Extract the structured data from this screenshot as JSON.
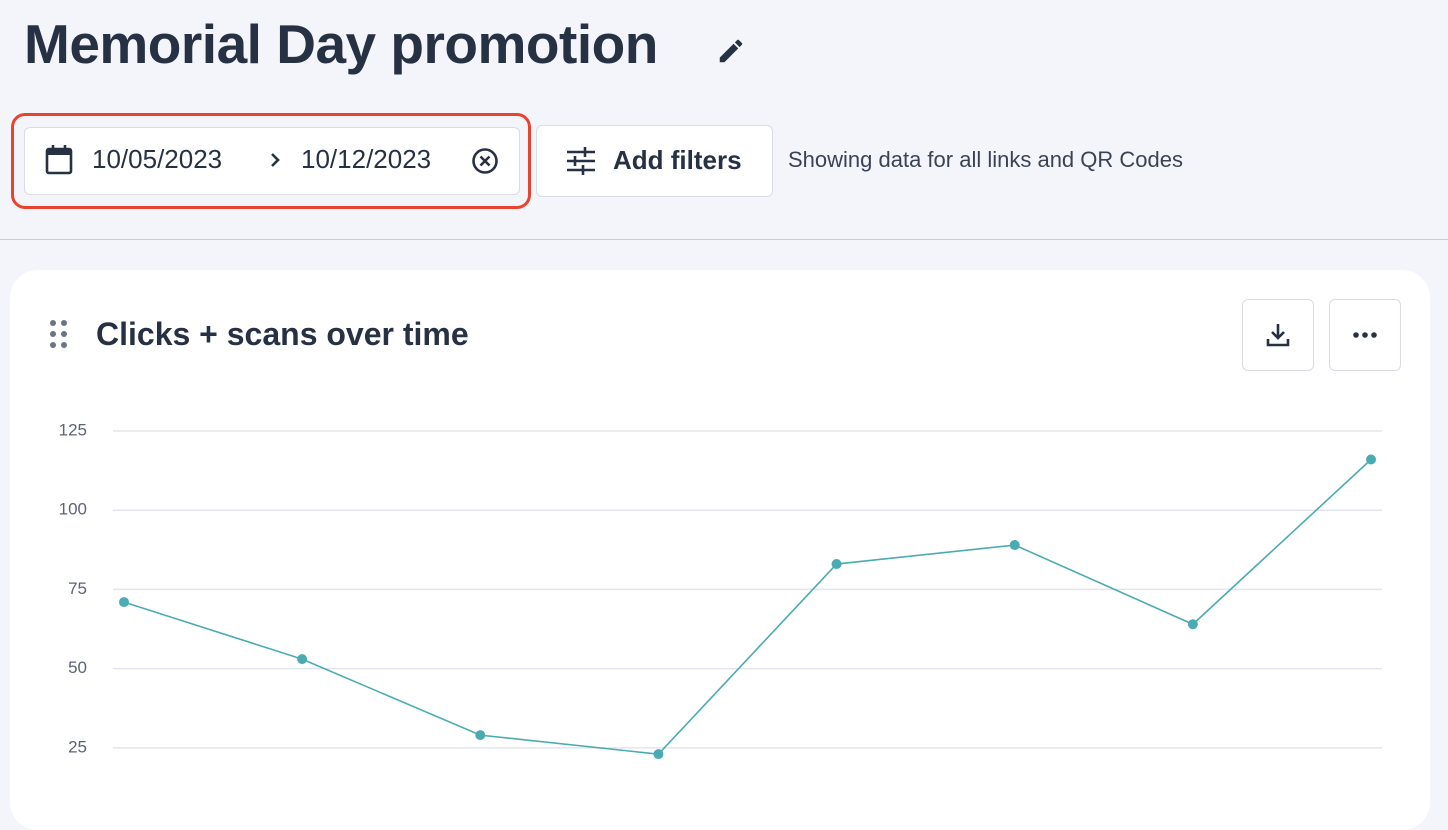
{
  "header": {
    "title": "Memorial Day promotion"
  },
  "date_range": {
    "start": "10/05/2023",
    "end": "10/12/2023"
  },
  "filters": {
    "button": "Add filters",
    "description": "Showing data for all links and QR Codes"
  },
  "card": {
    "title": "Clicks + scans over time"
  },
  "chart_data": {
    "type": "line",
    "categories": [
      null,
      null,
      null,
      null,
      null,
      null,
      null,
      null
    ],
    "values": [
      71,
      53,
      29,
      23,
      83,
      89,
      64,
      116
    ],
    "color": "#4aabb3",
    "ylim": [
      12,
      125
    ],
    "yticks": [
      25,
      50,
      75,
      100,
      125
    ],
    "grid": true
  }
}
